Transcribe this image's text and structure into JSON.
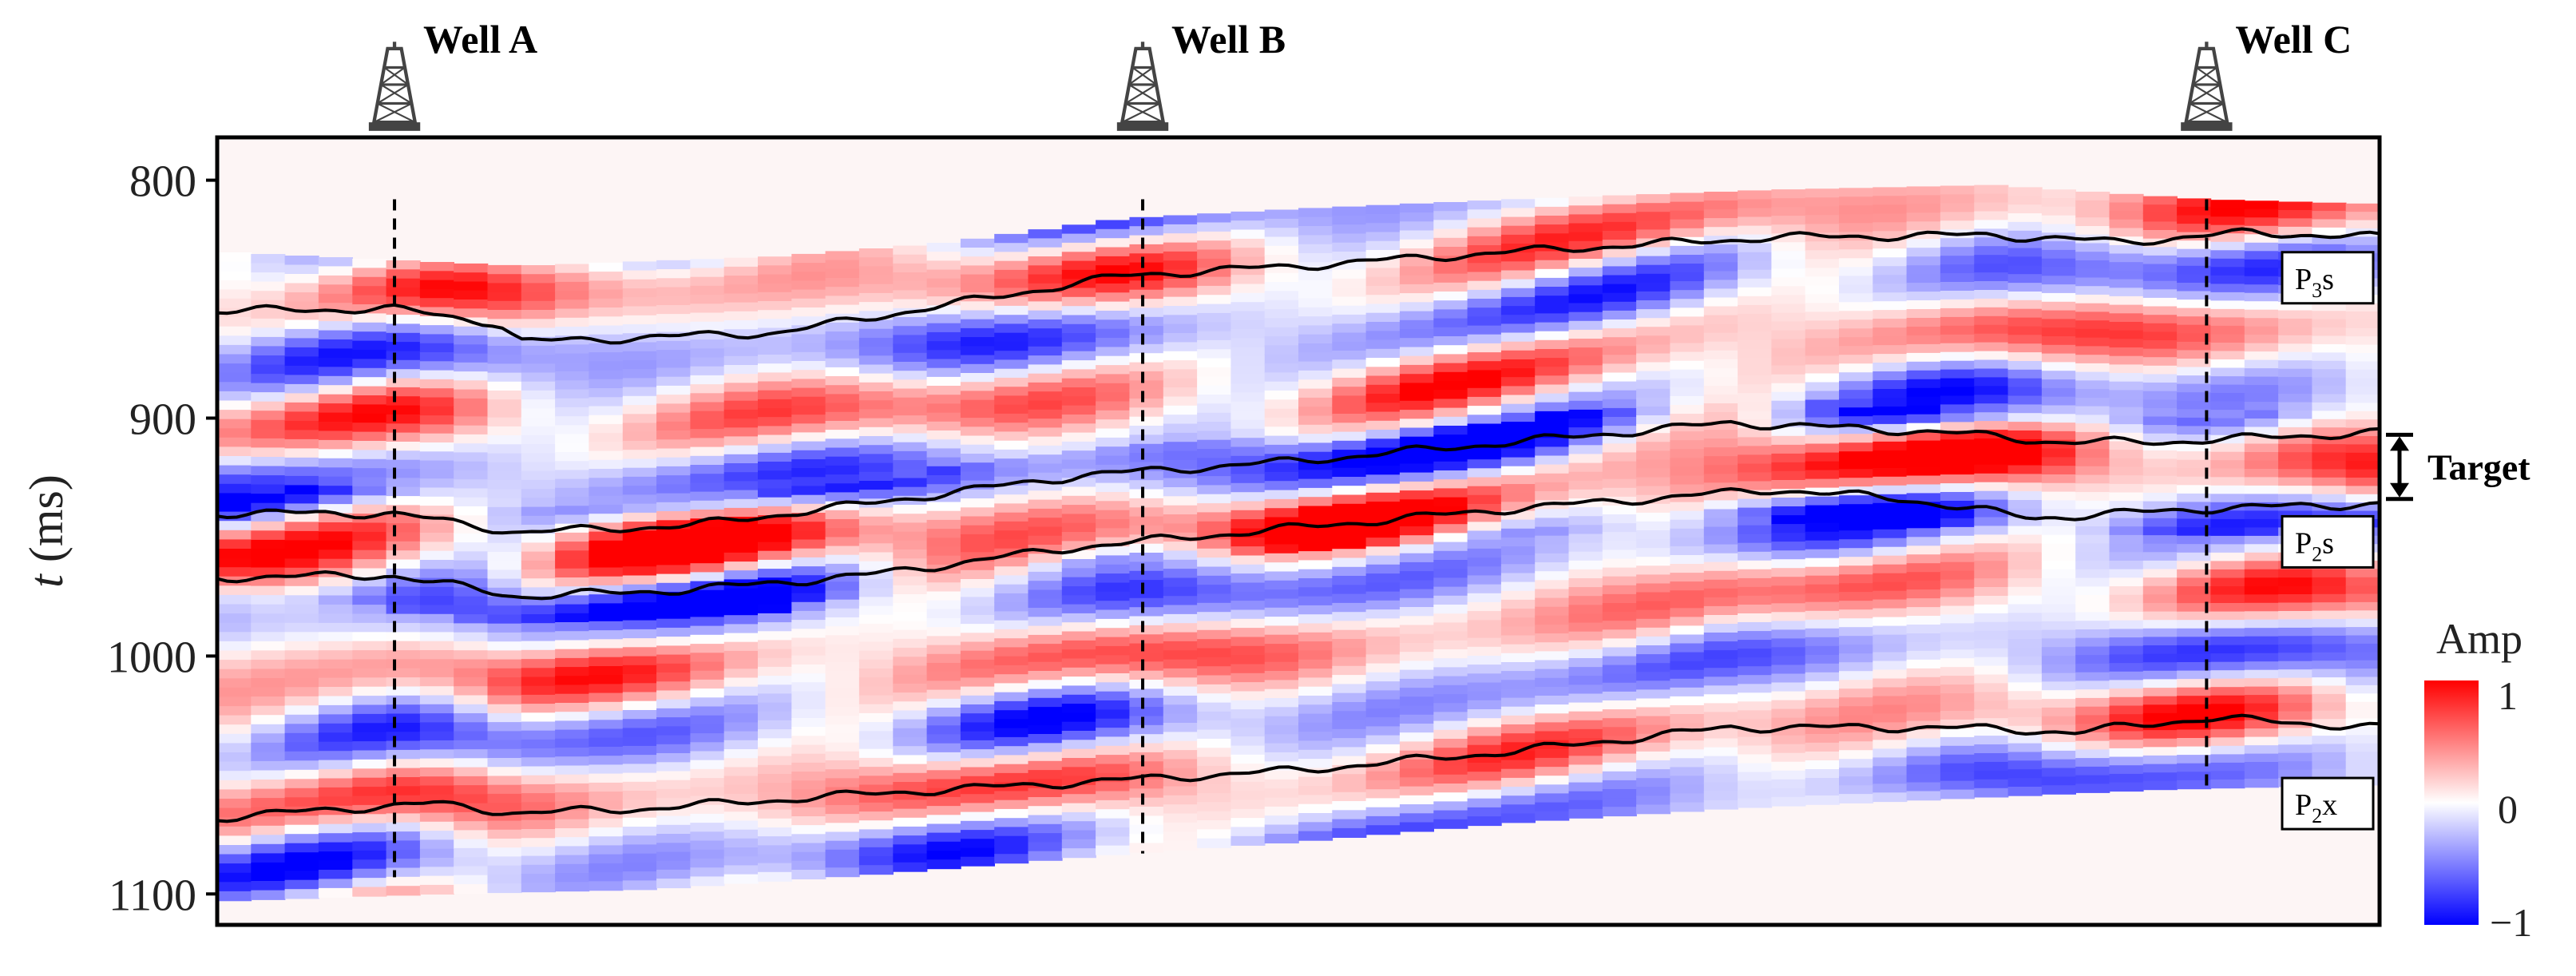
{
  "wells": [
    {
      "name": "Well A",
      "trace": 0.082,
      "t_top": 808,
      "t_bottom": 1093
    },
    {
      "name": "Well B",
      "trace": 0.428,
      "t_top": 808,
      "t_bottom": 1083
    },
    {
      "name": "Well C",
      "trace": 0.92,
      "t_top": 808,
      "t_bottom": 1056
    }
  ],
  "axis": {
    "y_label_italic": "t",
    "y_label_rest": " (ms)",
    "y_ticks": [
      "800",
      "900",
      "1000",
      "1100"
    ],
    "y_range_ms": [
      782,
      1113
    ]
  },
  "horizons": [
    {
      "name": "P3s",
      "base": "P",
      "sub": "3",
      "tail": "s",
      "label_t": 841
    },
    {
      "name": "P2s",
      "base": "P",
      "sub": "2",
      "tail": "s",
      "label_t": 952
    },
    {
      "name": "P2x",
      "base": "P",
      "sub": "2",
      "tail": "x",
      "label_t": 1062
    }
  ],
  "target": {
    "label": "Target",
    "t_top": 907,
    "t_bottom": 934
  },
  "colorbar": {
    "title": "Amp",
    "max_label": "1",
    "mid_label": "0",
    "min_label": "−1",
    "colors": [
      "#0000ff",
      "#ffffff",
      "#ff0000"
    ]
  }
}
